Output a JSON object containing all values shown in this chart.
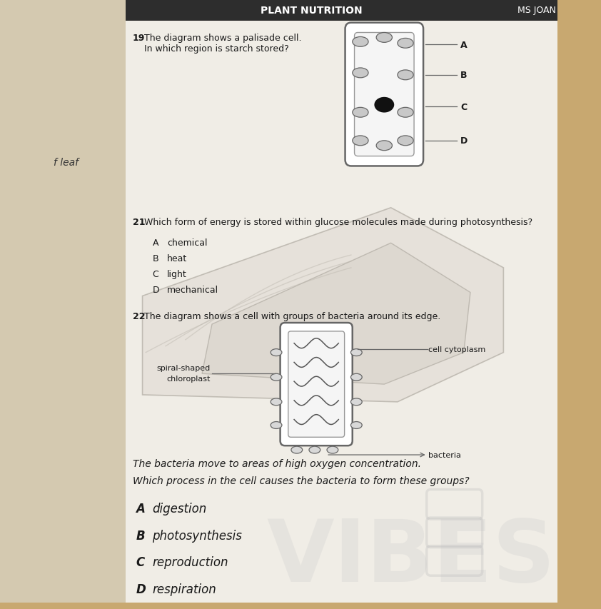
{
  "bg_top_color": "#c8a870",
  "bg_left_color": "#d4c9b0",
  "page_color": "#f0ede6",
  "header_color": "#2d2d2d",
  "header_text": "PLANT NUTRITION",
  "header_right": "MS JOAN",
  "left_label": "f leaf",
  "q19_num": "19",
  "q19_line1": "The diagram shows a palisade cell.",
  "q19_line2": "In which region is starch stored?",
  "q19_labels": [
    "A",
    "B",
    "C",
    "D"
  ],
  "q21_num": "21",
  "q21_text": "Which form of energy is stored within glucose molecules made during photosynthesis?",
  "q21_options": [
    [
      "A",
      "chemical"
    ],
    [
      "B",
      "heat"
    ],
    [
      "C",
      "light"
    ],
    [
      "D",
      "mechanical"
    ]
  ],
  "q22_num": "22",
  "q22_text": "The diagram shows a cell with groups of bacteria around its edge.",
  "q22_label1a": "spiral-shaped",
  "q22_label1b": "chloroplast",
  "q22_label2": "cell cytoplasm",
  "q22_label3": "bacteria",
  "q22_italic1": "The bacteria move to areas of high oxygen concentration.",
  "q22_italic2": "Which process in the cell causes the bacteria to form these groups?",
  "q22_options": [
    [
      "A",
      "digestion"
    ],
    [
      "B",
      "photosynthesis"
    ],
    [
      "C",
      "reproduction"
    ],
    [
      "D",
      "respiration"
    ]
  ],
  "text_color": "#1a1a1a",
  "line_color": "#666666",
  "cell_fill": "#ffffff",
  "cell_edge": "#666666",
  "chloro_fill": "#c8c8c8",
  "nucleus_color": "#111111",
  "watermark_color": "#cccccc",
  "watermark_alpha": 0.28,
  "box_color": "#c0c0c0"
}
